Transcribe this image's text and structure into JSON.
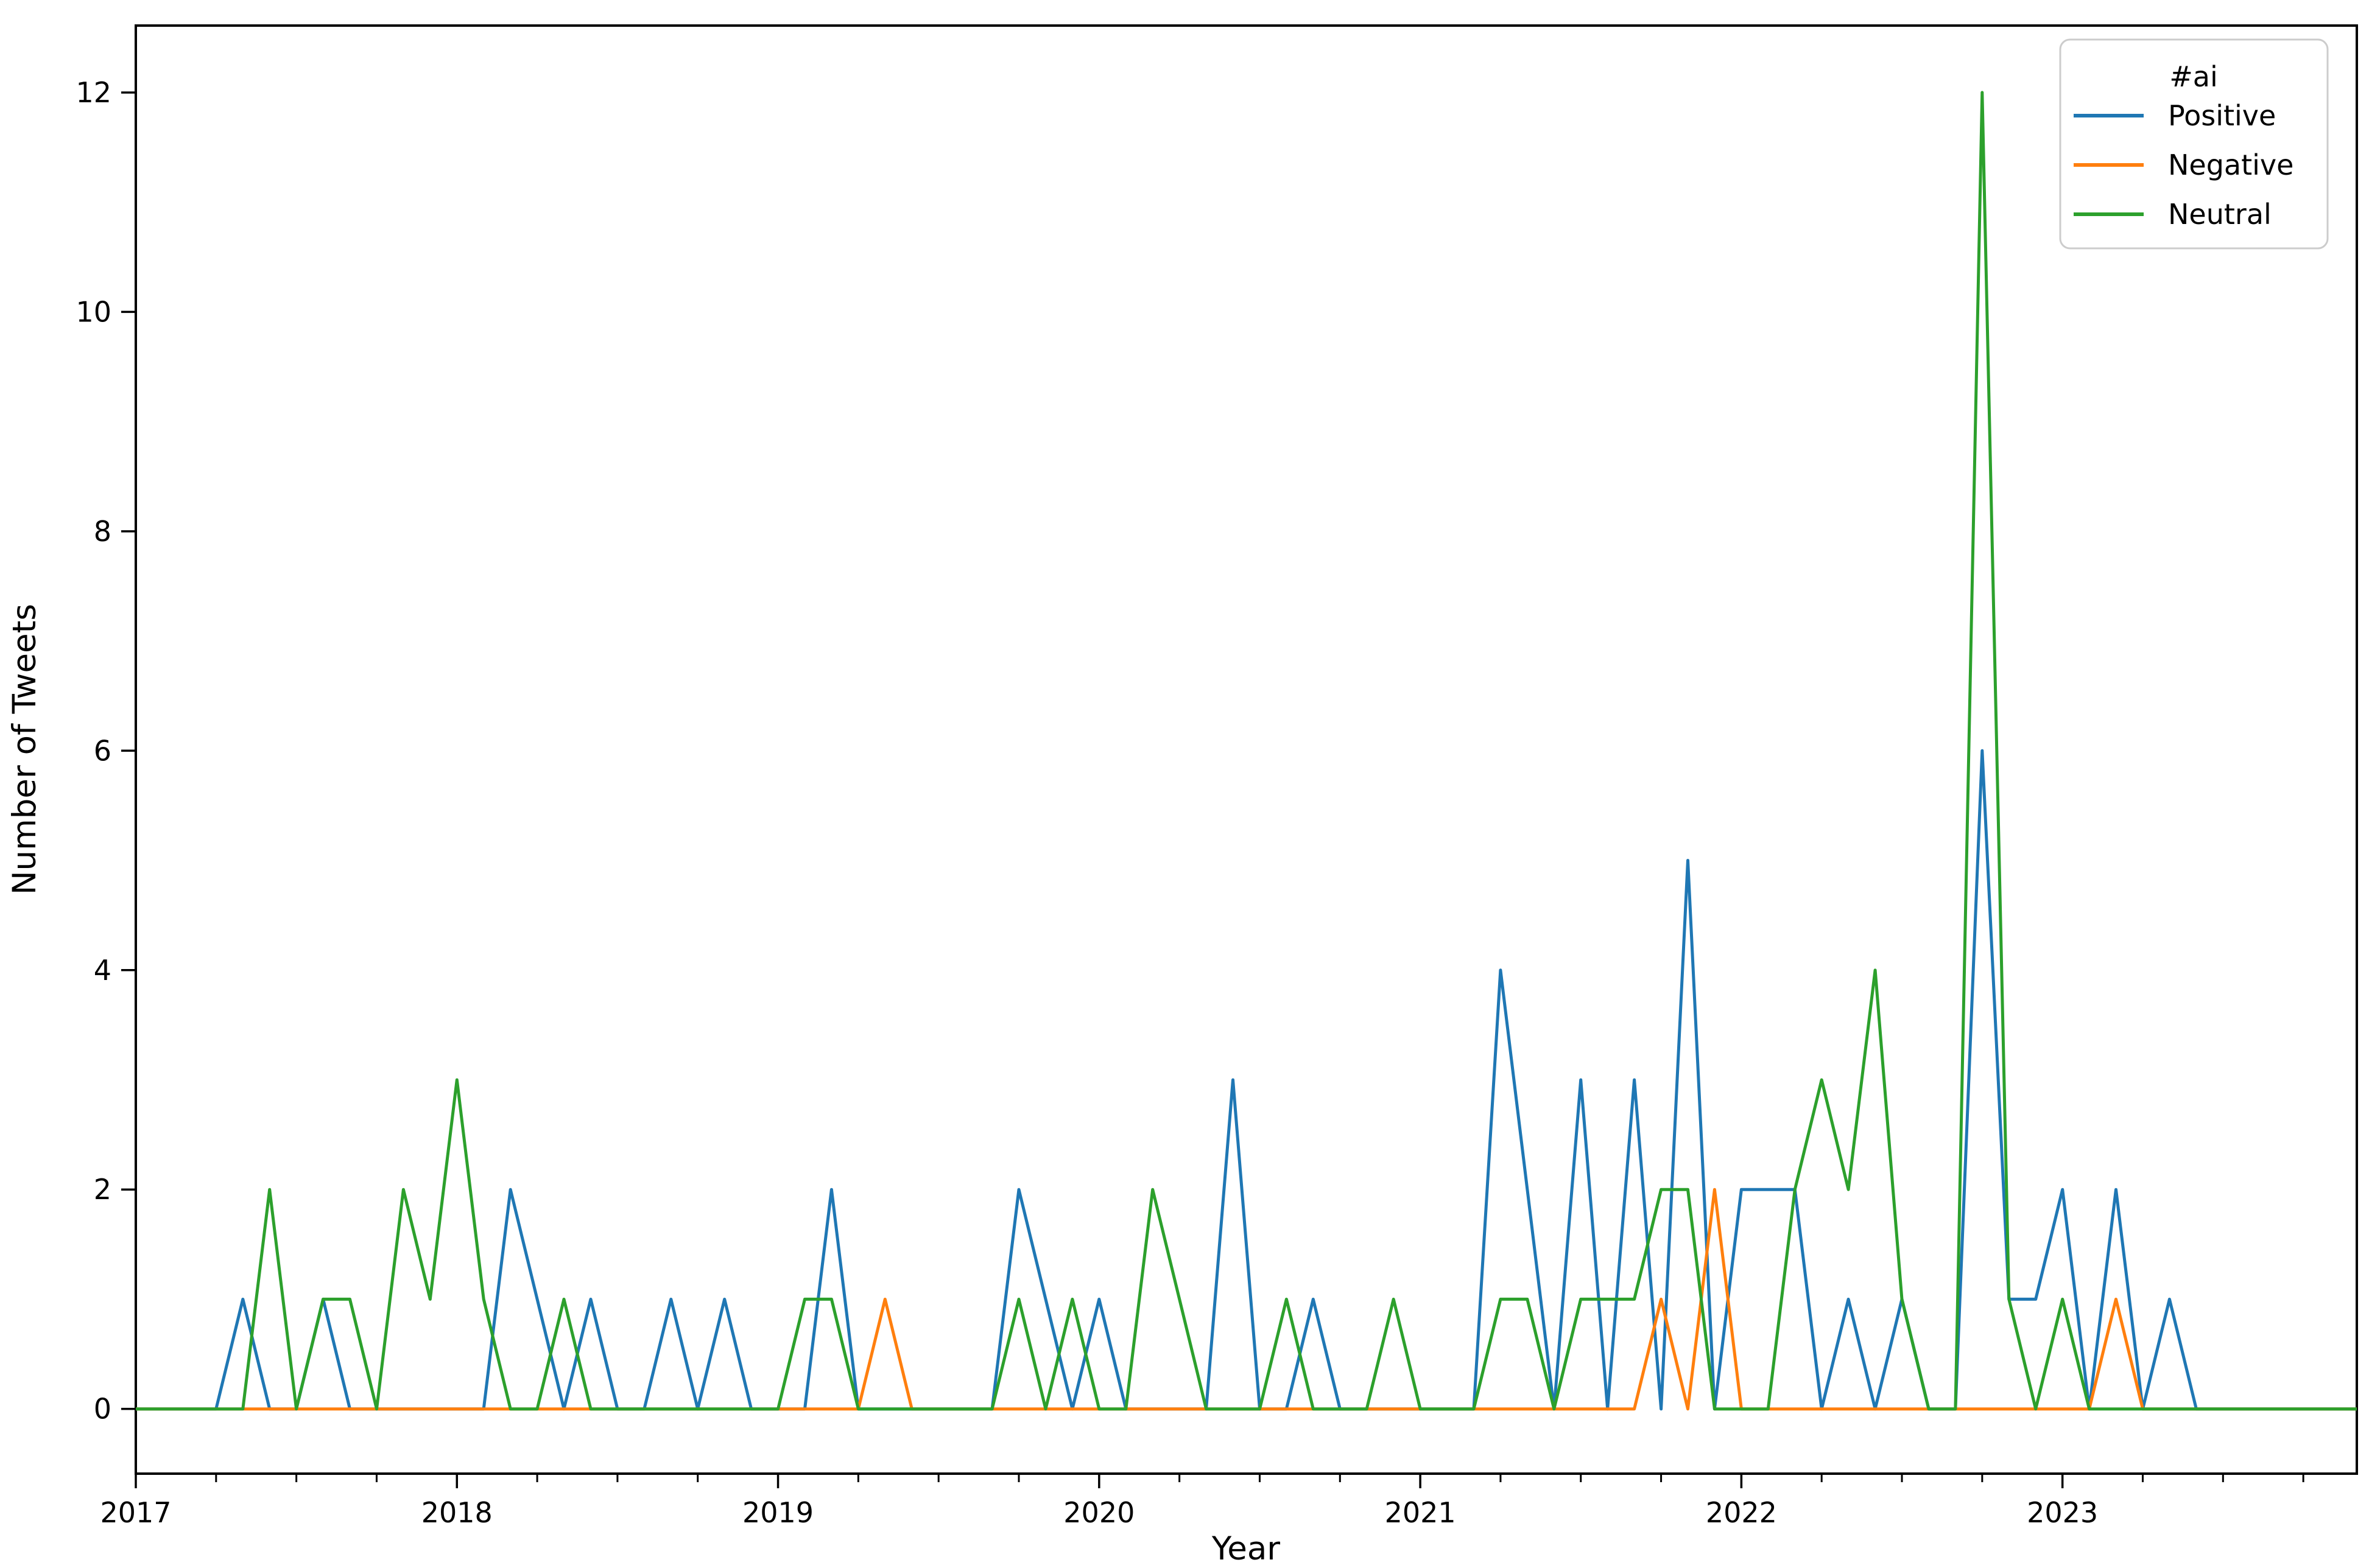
{
  "figure": {
    "background_color": "#ffffff",
    "frame_color": "#000000"
  },
  "axes": {
    "xlabel": "Year",
    "ylabel": "Number of Tweets",
    "x_tick_labels": [
      "2017",
      "2018",
      "2019",
      "2020",
      "2021",
      "2022",
      "2023"
    ],
    "y_tick_labels": [
      "0",
      "2",
      "4",
      "6",
      "8",
      "10",
      "12"
    ]
  },
  "legend": {
    "title": "#ai",
    "entries": [
      {
        "label": "Positive",
        "color": "#1f77b4"
      },
      {
        "label": "Negative",
        "color": "#ff7f0e"
      },
      {
        "label": "Neutral",
        "color": "#2ca02c"
      }
    ]
  },
  "chart_data": {
    "type": "line",
    "title": "",
    "xlabel": "Year",
    "ylabel": "Number of Tweets",
    "x_granularity": "monthly",
    "x_start": "2017-01",
    "x_end": "2023-12",
    "x_tick_years": [
      2017,
      2018,
      2019,
      2020,
      2021,
      2022,
      2023
    ],
    "minor_x_ticks": "quarterly",
    "ylim": [
      -0.59,
      12.61
    ],
    "y_ticks": [
      0,
      2,
      4,
      6,
      8,
      10,
      12
    ],
    "grid": false,
    "legend_position": "upper right",
    "legend_title": "#ai",
    "series": [
      {
        "name": "Positive",
        "color": "#1f77b4",
        "values": [
          0,
          0,
          0,
          0,
          1,
          0,
          0,
          1,
          0,
          0,
          0,
          0,
          0,
          0,
          2,
          1,
          0,
          1,
          0,
          0,
          1,
          0,
          1,
          0,
          0,
          0,
          2,
          0,
          0,
          0,
          0,
          0,
          0,
          2,
          1,
          0,
          1,
          0,
          0,
          0,
          0,
          3,
          0,
          0,
          1,
          0,
          0,
          0,
          0,
          0,
          0,
          4,
          2,
          0,
          3,
          0,
          3,
          0,
          5,
          0,
          2,
          2,
          2,
          0,
          1,
          0,
          1,
          0,
          0,
          6,
          1,
          1,
          2,
          0,
          2,
          0,
          1,
          0,
          0,
          0,
          0,
          0,
          0,
          0
        ]
      },
      {
        "name": "Negative",
        "color": "#ff7f0e",
        "values": [
          0,
          0,
          0,
          0,
          0,
          0,
          0,
          0,
          0,
          0,
          0,
          0,
          0,
          0,
          0,
          0,
          0,
          0,
          0,
          0,
          0,
          0,
          0,
          0,
          0,
          0,
          0,
          0,
          1,
          0,
          0,
          0,
          0,
          0,
          0,
          0,
          0,
          0,
          0,
          0,
          0,
          0,
          0,
          0,
          0,
          0,
          0,
          0,
          0,
          0,
          0,
          0,
          0,
          0,
          0,
          0,
          0,
          1,
          0,
          2,
          0,
          0,
          0,
          0,
          0,
          0,
          0,
          0,
          0,
          0,
          0,
          0,
          0,
          0,
          1,
          0,
          0,
          0,
          0,
          0,
          0,
          0,
          0,
          0
        ]
      },
      {
        "name": "Neutral",
        "color": "#2ca02c",
        "values": [
          0,
          0,
          0,
          0,
          0,
          2,
          0,
          1,
          1,
          0,
          2,
          1,
          3,
          1,
          0,
          0,
          1,
          0,
          0,
          0,
          0,
          0,
          0,
          0,
          0,
          1,
          1,
          0,
          0,
          0,
          0,
          0,
          0,
          1,
          0,
          1,
          0,
          0,
          2,
          1,
          0,
          0,
          0,
          1,
          0,
          0,
          0,
          1,
          0,
          0,
          0,
          1,
          1,
          0,
          1,
          1,
          1,
          2,
          2,
          0,
          0,
          0,
          2,
          3,
          2,
          4,
          1,
          0,
          0,
          12,
          1,
          0,
          1,
          0,
          0,
          0,
          0,
          0,
          0,
          0,
          0,
          0,
          0,
          0
        ]
      }
    ]
  }
}
